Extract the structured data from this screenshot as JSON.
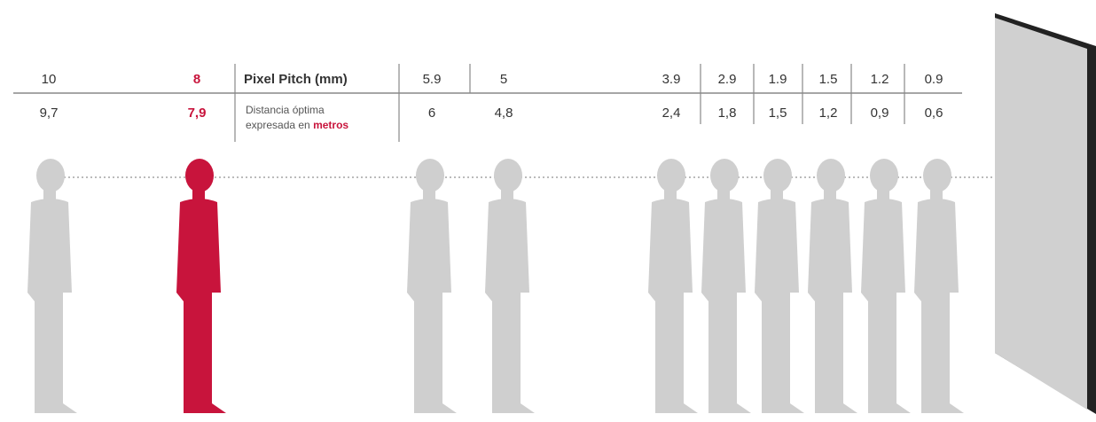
{
  "pitch_label": "Pixel Pitch (mm)",
  "distance_label": [
    "Distancia óptima",
    "expresada en",
    "metros"
  ],
  "pitch": [
    "10",
    "8",
    "5.9",
    "5",
    "3.9",
    "2.9",
    "1.9",
    "1.5",
    "1.2",
    "0.9"
  ],
  "distance": [
    "9,7",
    "7,9",
    "6",
    "4,8",
    "2,4",
    "1,8",
    "1,5",
    "1,2",
    "0,9",
    "0,6"
  ]
}
